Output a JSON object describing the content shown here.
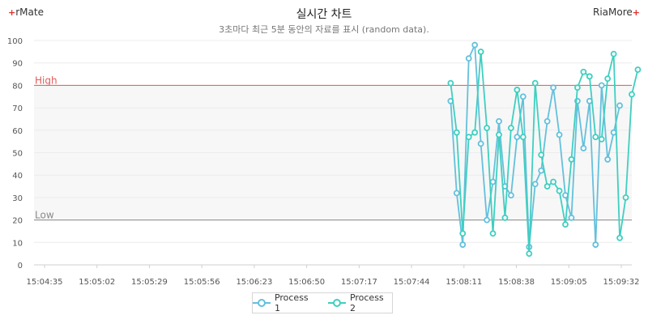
{
  "header": {
    "brand_left": "rMate",
    "brand_right": "RiaMore",
    "title": "실시간 차트",
    "subtitle": "3초마다 최근 5분 동안의 자료를 표시 (random data)."
  },
  "chart_data": {
    "type": "line",
    "ylim": [
      0,
      100
    ],
    "y_ticks": [
      0,
      10,
      20,
      30,
      40,
      50,
      60,
      70,
      80,
      90,
      100
    ],
    "x_tick_labels": [
      "15:04:35",
      "15:05:02",
      "15:05:29",
      "15:05:56",
      "15:06:23",
      "15:06:50",
      "15:07:17",
      "15:07:44",
      "15:08:11",
      "15:08:38",
      "15:09:05",
      "15:09:32"
    ],
    "x_start_index": 69,
    "x_total_points": 100,
    "grid": true,
    "legend_position": "bottom-center",
    "threshold_lines": [
      {
        "label": "High",
        "value": 80,
        "color": "#e05a5a"
      },
      {
        "label": "Low",
        "value": 20,
        "color": "#8a8a8a"
      }
    ],
    "band": {
      "from": 20,
      "to": 80,
      "color": "#f7f7f7"
    },
    "series": [
      {
        "name": "Process 1",
        "color": "#64c0dc",
        "values": [
          73,
          32,
          9,
          92,
          98,
          54,
          20,
          37,
          64,
          35,
          31,
          57,
          75,
          8,
          36,
          42,
          64,
          79,
          58,
          31,
          21,
          73,
          52,
          73,
          9,
          80,
          47,
          59,
          71
        ]
      },
      {
        "name": "Process 2",
        "color": "#3fcfc0",
        "values": [
          81,
          59,
          14,
          57,
          59,
          95,
          61,
          14,
          58,
          21,
          61,
          78,
          57,
          5,
          81,
          49,
          35,
          37,
          33,
          18,
          47,
          79,
          86,
          84,
          57,
          56,
          83,
          94,
          12,
          30,
          76,
          87
        ]
      }
    ]
  }
}
